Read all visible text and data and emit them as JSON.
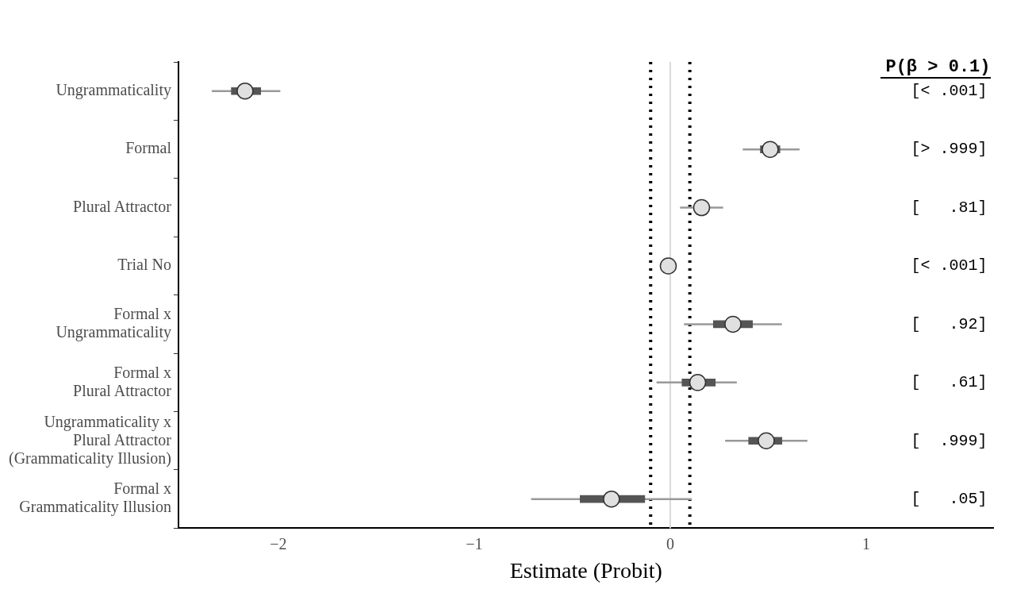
{
  "chart_data": {
    "type": "scatter",
    "orientation": "horizontal",
    "xlabel": "Estimate (Probit)",
    "categories": [
      "Ungrammaticality",
      "Formal",
      "Plural Attractor",
      "Trial No",
      "Formal x\nUngrammaticality",
      "Formal x\nPlural Attractor",
      "Ungrammaticality x\nPlural Attractor\n(Grammaticality Illusion)",
      "Formal x\nGrammaticality Illusion"
    ],
    "series": [
      {
        "type": "bar",
        "color": "#555555",
        "base": [
          -2.24,
          0.46,
          null,
          null,
          0.22,
          0.06,
          0.4,
          -0.46
        ],
        "values": [
          0.15,
          0.1,
          null,
          null,
          0.2,
          0.17,
          0.17,
          0.33
        ]
      },
      {
        "color": "#e0e0e0",
        "values": [
          -2.17,
          0.51,
          0.16,
          -0.01,
          0.32,
          0.14,
          0.49,
          -0.3
        ],
        "errors": [
          [
            -2.34,
            -1.99
          ],
          [
            0.37,
            0.66
          ],
          [
            0.05,
            0.27
          ],
          null,
          [
            0.07,
            0.57
          ],
          [
            -0.07,
            0.34
          ],
          [
            0.28,
            0.7
          ],
          [
            -0.71,
            0.11
          ]
        ]
      }
    ],
    "annotations": [
      "[< .001]",
      "[> .999]",
      "[   .81]",
      "[< .001]",
      "[   .92]",
      "[   .61]",
      "[  .999]",
      "[   .05]"
    ],
    "legend_title": "P(β > 0.1)",
    "xlim": [
      -2.51,
      1.65
    ],
    "xticks": [
      {
        "value": -2,
        "label": "−2"
      },
      {
        "value": -1,
        "label": "−1"
      },
      {
        "value": 0,
        "label": "0"
      },
      {
        "value": 1,
        "label": "1"
      }
    ],
    "ref_lines": [
      {
        "axis": "x",
        "value": 0,
        "color": "#d9d9d9",
        "line_style": "solid"
      },
      {
        "axis": "x",
        "value": -0.1,
        "color": "#000000",
        "line_style": "dotted"
      },
      {
        "axis": "x",
        "value": 0.1,
        "color": "#000000",
        "line_style": "dotted"
      }
    ],
    "grid": false,
    "legend": false,
    "marker": "circle"
  }
}
